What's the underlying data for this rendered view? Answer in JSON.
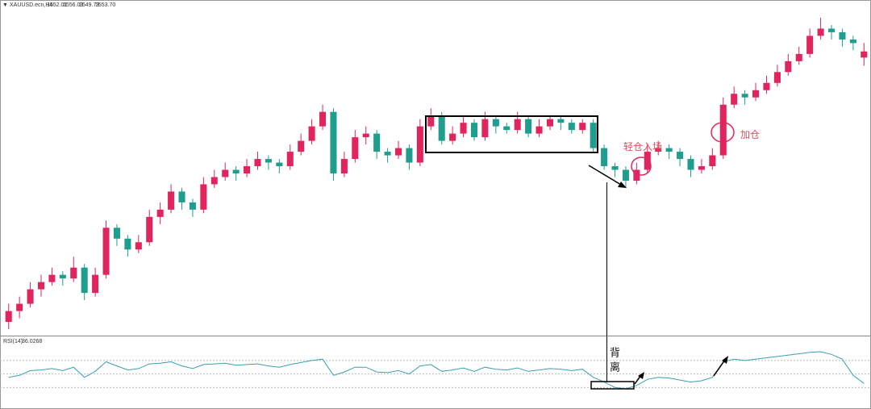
{
  "chart_data": [
    {
      "type": "candlestick",
      "symbol": "XAUUSD.ecn,H4",
      "header_ohlc": [
        "1552.01",
        "1556.03",
        "1549.73",
        "1553.70"
      ],
      "up_color": "#e0245e",
      "down_color": "#1f9e8f",
      "open": [
        1479,
        1482,
        1484,
        1488,
        1490,
        1492,
        1491,
        1494,
        1487,
        1492,
        1505,
        1502,
        1499,
        1501,
        1508,
        1510,
        1515,
        1512,
        1510,
        1517,
        1519,
        1521,
        1520,
        1522,
        1524,
        1523,
        1522,
        1526,
        1529,
        1533,
        1537,
        1520,
        1524,
        1530,
        1531,
        1526,
        1525,
        1527,
        1523,
        1533,
        1536,
        1529,
        1531,
        1534,
        1530,
        1535,
        1533,
        1532,
        1535,
        1531,
        1533,
        1535,
        1534,
        1532,
        1534,
        1527,
        1522,
        1521,
        1518,
        1521,
        1526,
        1527,
        1526,
        1524,
        1521,
        1522,
        1525,
        1539,
        1542,
        1541,
        1543,
        1545,
        1548,
        1551,
        1553,
        1558,
        1560,
        1559,
        1557,
        1552.01
      ],
      "high": [
        1484,
        1486,
        1490,
        1492,
        1494,
        1493,
        1497,
        1495,
        1494,
        1507,
        1506,
        1503,
        1503,
        1510,
        1512,
        1517,
        1516,
        1513,
        1519,
        1521,
        1523,
        1522,
        1524,
        1526,
        1525,
        1524,
        1528,
        1531,
        1535,
        1539,
        1538,
        1526,
        1532,
        1533,
        1532,
        1527,
        1529,
        1528,
        1535,
        1538,
        1537,
        1533,
        1536,
        1535,
        1537,
        1536,
        1534,
        1537,
        1536,
        1535,
        1536,
        1536,
        1535,
        1535,
        1535,
        1528,
        1523,
        1522,
        1523,
        1528,
        1529,
        1528,
        1527,
        1525,
        1524,
        1527,
        1541,
        1544,
        1543,
        1545,
        1547,
        1550,
        1553,
        1555,
        1560,
        1563,
        1561,
        1560,
        1558,
        1556.03
      ],
      "low": [
        1477,
        1480,
        1483,
        1486,
        1489,
        1489,
        1490,
        1485,
        1486,
        1491,
        1500,
        1497,
        1498,
        1500,
        1506,
        1509,
        1510,
        1508,
        1509,
        1516,
        1518,
        1518,
        1519,
        1521,
        1521,
        1520,
        1521,
        1525,
        1528,
        1532,
        1518,
        1519,
        1523,
        1528,
        1524,
        1523,
        1524,
        1521,
        1522,
        1532,
        1528,
        1528,
        1530,
        1529,
        1529,
        1531,
        1531,
        1531,
        1530,
        1530,
        1532,
        1532,
        1531,
        1531,
        1526,
        1521,
        1519,
        1516,
        1517,
        1520,
        1525,
        1524,
        1522,
        1519,
        1520,
        1521,
        1524,
        1538,
        1539,
        1540,
        1542,
        1544,
        1547,
        1550,
        1552,
        1557,
        1557,
        1555,
        1554,
        1549.73
      ],
      "close": [
        1482,
        1484,
        1488,
        1490,
        1492,
        1491,
        1494,
        1487,
        1492,
        1505,
        1502,
        1499,
        1501,
        1508,
        1510,
        1515,
        1512,
        1510,
        1517,
        1519,
        1521,
        1520,
        1522,
        1524,
        1523,
        1522,
        1526,
        1529,
        1533,
        1537,
        1520,
        1524,
        1530,
        1531,
        1526,
        1525,
        1527,
        1523,
        1533,
        1536,
        1529,
        1531,
        1534,
        1530,
        1535,
        1533,
        1532,
        1535,
        1531,
        1533,
        1535,
        1534,
        1532,
        1534,
        1527,
        1522,
        1521,
        1518,
        1521,
        1526,
        1527,
        1526,
        1524,
        1521,
        1522,
        1525,
        1539,
        1542,
        1541,
        1543,
        1545,
        1548,
        1551,
        1553,
        1558,
        1560,
        1559,
        1557,
        1556,
        1553.7
      ]
    },
    {
      "type": "line",
      "title": "RSI(14)",
      "color": "#3a9fb5",
      "levels": [
        70,
        50,
        30
      ],
      "values": [
        45,
        48,
        55,
        56,
        58,
        55,
        60,
        45,
        54,
        68,
        62,
        56,
        58,
        65,
        66,
        68,
        62,
        58,
        64,
        65,
        66,
        63,
        64,
        65,
        62,
        60,
        64,
        67,
        70,
        72,
        48,
        53,
        60,
        60,
        53,
        52,
        55,
        50,
        62,
        64,
        54,
        56,
        59,
        54,
        60,
        57,
        56,
        59,
        54,
        56,
        58,
        57,
        55,
        57,
        45,
        38,
        30,
        28,
        33,
        42,
        45,
        44,
        41,
        38,
        40,
        45,
        68,
        72,
        70,
        72,
        74,
        76,
        78,
        80,
        82,
        83,
        79,
        72,
        48,
        36.0268
      ]
    }
  ],
  "annotations": {
    "entry": "轻仓入场",
    "add": "加仓",
    "divergence": [
      "背",
      "离"
    ]
  }
}
